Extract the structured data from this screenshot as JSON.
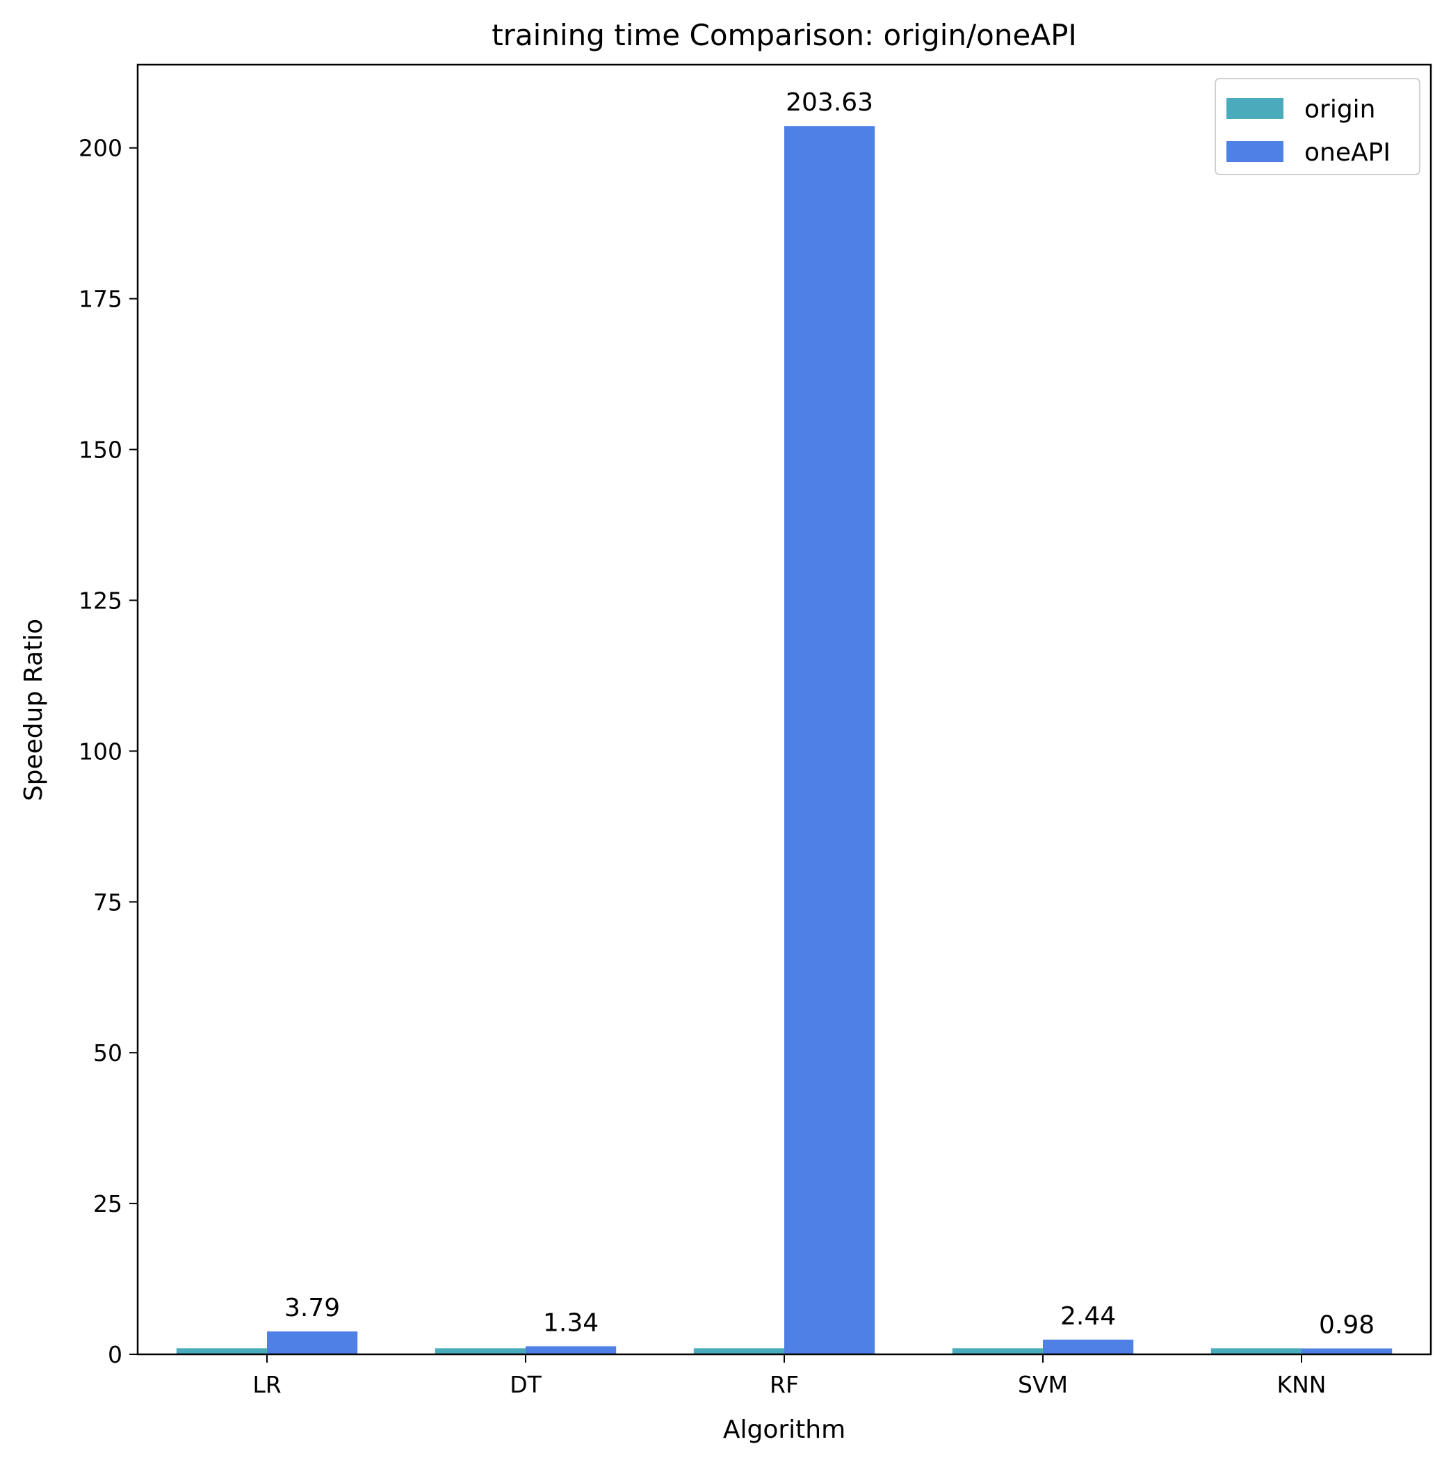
{
  "chart_data": {
    "type": "bar",
    "title": "training time Comparison: origin/oneAPI",
    "xlabel": "Algorithm",
    "ylabel": "Speedup Ratio",
    "categories": [
      "LR",
      "DT",
      "RF",
      "SVM",
      "KNN"
    ],
    "series": [
      {
        "name": "origin",
        "values": [
          1,
          1,
          1,
          1,
          1
        ],
        "color": "#4aabbd"
      },
      {
        "name": "oneAPI",
        "values": [
          3.79,
          1.34,
          203.63,
          2.44,
          0.98
        ],
        "color": "#4e80e5"
      }
    ],
    "data_labels": [
      "3.79",
      "1.34",
      "203.63",
      "2.44",
      "0.98"
    ],
    "ylim": [
      0,
      213.8
    ],
    "yticks": [
      0,
      25,
      50,
      75,
      100,
      125,
      150,
      175,
      200
    ],
    "grid": false,
    "legend_position": "top-right"
  }
}
